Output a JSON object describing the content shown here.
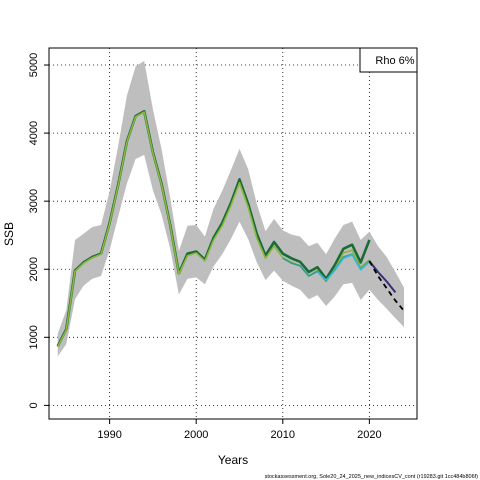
{
  "chart_data": {
    "type": "line",
    "title": "",
    "xlabel": "Years",
    "ylabel": "SSB",
    "xlim": [
      1983,
      2025.5
    ],
    "ylim": [
      -200,
      5250
    ],
    "x_ticks": [
      1990,
      2000,
      2010,
      2020
    ],
    "y_ticks": [
      0,
      1000,
      2000,
      3000,
      4000,
      5000
    ],
    "grid": true,
    "legend": {
      "text": "Rho 6%",
      "placement": "top-right"
    },
    "source_caption": "stockassessment.org, Sole20_24_2025_new_indicesCV_cont (r19283.git 1cc484b806f)",
    "colors": {
      "ci_band": "#bebebe",
      "base_line": "#1a6b3a",
      "peel_line": "#8cb63c",
      "peel_line_2": "#2f9b8e",
      "peel_line_3": "#3ab6d8",
      "forecast_line": "#3a2d7a",
      "forecast_dash": "#000000"
    },
    "series": [
      {
        "x": [
          1984,
          1985,
          1986,
          1987,
          1988,
          1989,
          1990,
          1991,
          1992,
          1993,
          1994,
          1995,
          1996,
          1997,
          1998,
          1999,
          2000,
          2001,
          2002,
          2003,
          2004,
          2005,
          2006,
          2007,
          2008,
          2009,
          2010,
          2011,
          2012,
          2013,
          2014,
          2015,
          2016,
          2017,
          2018,
          2019,
          2020
        ],
        "values": [
          870,
          1120,
          1980,
          2100,
          2180,
          2230,
          2680,
          3250,
          3880,
          4250,
          4320,
          3720,
          3250,
          2650,
          1940,
          2230,
          2260,
          2140,
          2460,
          2680,
          2970,
          3320,
          2960,
          2520,
          2200,
          2400,
          2230,
          2160,
          2110,
          1960,
          2030,
          1860,
          2060,
          2300,
          2360,
          2100,
          2430
        ]
      },
      {
        "x": [
          1984,
          1985,
          1986,
          1987,
          1988,
          1989,
          1990,
          1991,
          1992,
          1993,
          1994,
          1995,
          1996,
          1997,
          1998,
          1999,
          2000,
          2001,
          2002,
          2003,
          2004,
          2005,
          2006,
          2007,
          2008,
          2009,
          2010,
          2011,
          2012,
          2013,
          2014,
          2015,
          2016,
          2017,
          2018,
          2019,
          2020
        ],
        "values": [
          860,
          1110,
          1970,
          2090,
          2170,
          2220,
          2670,
          3240,
          3870,
          4240,
          4310,
          3710,
          3240,
          2640,
          1930,
          2200,
          2240,
          2120,
          2430,
          2640,
          2930,
          3270,
          2910,
          2460,
          2160,
          2340,
          2170,
          2100,
          2050,
          1900,
          1980,
          1820,
          2000,
          2240,
          2280,
          2030,
          2140
        ]
      },
      {
        "x": [
          2010,
          2011,
          2012,
          2013,
          2014,
          2015,
          2016,
          2017,
          2018,
          2019,
          2020,
          2021
        ],
        "values": [
          2160,
          2090,
          2050,
          1900,
          1970,
          1830,
          1990,
          2180,
          2220,
          2000,
          2120,
          1960
        ]
      },
      {
        "x": [
          2014,
          2015,
          2016,
          2017,
          2018,
          2019,
          2020,
          2021
        ],
        "values": [
          1960,
          1840,
          1980,
          2160,
          2210,
          1990,
          2110,
          1970
        ]
      },
      {
        "x": [
          2020,
          2021,
          2022,
          2023
        ],
        "values": [
          2120,
          1960,
          1820,
          1660
        ]
      },
      {
        "x": [
          2020,
          2021,
          2022,
          2023,
          2024
        ],
        "values": [
          2120,
          1900,
          1720,
          1540,
          1390
        ]
      }
    ],
    "ci_band": {
      "x": [
        1984,
        1985,
        1986,
        1987,
        1988,
        1989,
        1990,
        1991,
        1992,
        1993,
        1994,
        1995,
        1996,
        1997,
        1998,
        1999,
        2000,
        2001,
        2002,
        2003,
        2004,
        2005,
        2006,
        2007,
        2008,
        2009,
        2010,
        2011,
        2012,
        2013,
        2014,
        2015,
        2016,
        2017,
        2018,
        2019,
        2020,
        2021,
        2022,
        2023,
        2024
      ],
      "lower": [
        720,
        900,
        1560,
        1760,
        1860,
        1900,
        2280,
        2780,
        3260,
        3620,
        3680,
        3160,
        2800,
        2300,
        1630,
        1860,
        1880,
        1780,
        2040,
        2220,
        2440,
        2700,
        2440,
        2100,
        1840,
        1980,
        1830,
        1760,
        1700,
        1560,
        1620,
        1460,
        1600,
        1780,
        1800,
        1550,
        1700,
        1550,
        1420,
        1280,
        1150
      ],
      "upper": [
        1050,
        1400,
        2430,
        2520,
        2620,
        2650,
        3140,
        3820,
        4550,
        4980,
        5060,
        4350,
        3760,
        3050,
        2270,
        2640,
        2650,
        2480,
        2890,
        3150,
        3450,
        3770,
        3470,
        2960,
        2560,
        2740,
        2570,
        2510,
        2480,
        2340,
        2390,
        2220,
        2450,
        2650,
        2700,
        2430,
        2550,
        2340,
        2180,
        1960,
        1730
      ]
    }
  }
}
